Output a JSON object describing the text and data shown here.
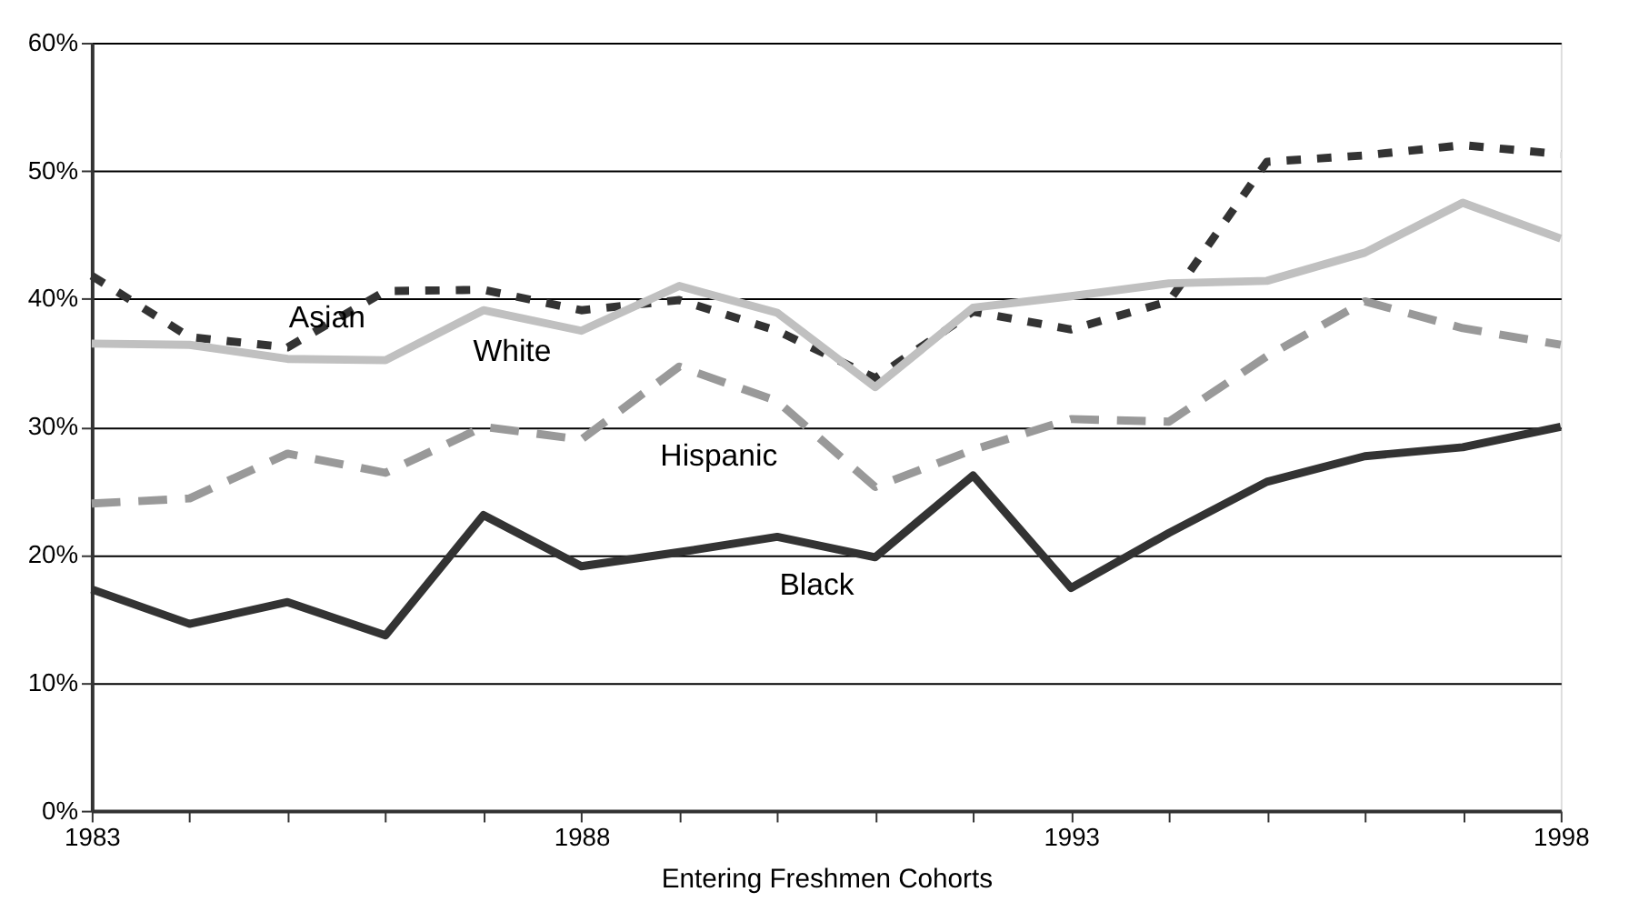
{
  "chart_data": {
    "type": "line",
    "xlabel": "Entering Freshmen Cohorts",
    "x": [
      1983,
      1984,
      1985,
      1986,
      1987,
      1988,
      1989,
      1990,
      1991,
      1992,
      1993,
      1994,
      1995,
      1996,
      1997,
      1998
    ],
    "series": [
      {
        "name": "Asian",
        "color": "#333333",
        "line_style": "dotted",
        "values": [
          41.8,
          37.0,
          36.2,
          40.6,
          40.7,
          39.1,
          39.9,
          37.5,
          33.8,
          39.0,
          37.6,
          39.8,
          50.7,
          51.2,
          52.0,
          51.3
        ]
      },
      {
        "name": "White",
        "color": "#c0c0c0",
        "line_style": "solid",
        "values": [
          36.5,
          36.4,
          35.3,
          35.2,
          39.1,
          37.5,
          41.0,
          38.9,
          33.1,
          39.3,
          40.2,
          41.2,
          41.4,
          43.6,
          47.5,
          44.7
        ]
      },
      {
        "name": "Hispanic",
        "color": "#999999",
        "line_style": "dashed",
        "values": [
          24.0,
          24.4,
          27.9,
          26.4,
          30.0,
          29.0,
          34.7,
          32.0,
          25.3,
          28.2,
          30.6,
          30.4,
          35.5,
          39.8,
          37.7,
          36.4
        ]
      },
      {
        "name": "Black",
        "color": "#333333",
        "line_style": "solid",
        "values": [
          17.3,
          14.6,
          16.3,
          13.7,
          23.1,
          19.1,
          20.2,
          21.4,
          19.8,
          26.2,
          17.4,
          21.7,
          25.7,
          27.7,
          28.4,
          30.0
        ]
      }
    ],
    "xlim": [
      1983,
      1998
    ],
    "xticks": [
      {
        "value": 1983,
        "label": "1983"
      },
      {
        "value": 1984,
        "label": null
      },
      {
        "value": 1985,
        "label": null
      },
      {
        "value": 1986,
        "label": null
      },
      {
        "value": 1987,
        "label": null
      },
      {
        "value": 1988,
        "label": "1988"
      },
      {
        "value": 1989,
        "label": null
      },
      {
        "value": 1990,
        "label": null
      },
      {
        "value": 1991,
        "label": null
      },
      {
        "value": 1992,
        "label": null
      },
      {
        "value": 1993,
        "label": "1993"
      },
      {
        "value": 1994,
        "label": null
      },
      {
        "value": 1995,
        "label": null
      },
      {
        "value": 1996,
        "label": null
      },
      {
        "value": 1997,
        "label": null
      },
      {
        "value": 1998,
        "label": "1998"
      }
    ],
    "ylim": [
      0,
      60
    ],
    "yticks": [
      {
        "value": 0,
        "label": "0%"
      },
      {
        "value": 10,
        "label": "10%"
      },
      {
        "value": 20,
        "label": "20%"
      },
      {
        "value": 30,
        "label": "30%"
      },
      {
        "value": 40,
        "label": "40%"
      },
      {
        "value": 50,
        "label": "50%"
      },
      {
        "value": 60,
        "label": "60%"
      }
    ],
    "grid": "y"
  }
}
